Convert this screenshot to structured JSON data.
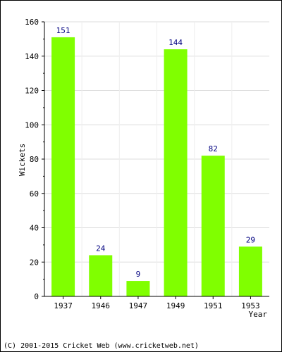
{
  "chart_data": {
    "type": "bar",
    "categories": [
      "1937",
      "1946",
      "1947",
      "1949",
      "1951",
      "1953"
    ],
    "values": [
      151,
      24,
      9,
      144,
      82,
      29
    ],
    "title": "",
    "xlabel": "Year",
    "ylabel": "Wickets",
    "ylim": [
      0,
      160
    ],
    "yticks": [
      0,
      20,
      40,
      60,
      80,
      100,
      120,
      140,
      160
    ],
    "grid": true,
    "legend": "none",
    "bar_color": "#80ff00",
    "label_color": "#000080",
    "grid_color": "#dddddd",
    "axis_color": "#000000"
  },
  "footer": {
    "copyright": "(C) 2001-2015 Cricket Web (www.cricketweb.net)"
  }
}
